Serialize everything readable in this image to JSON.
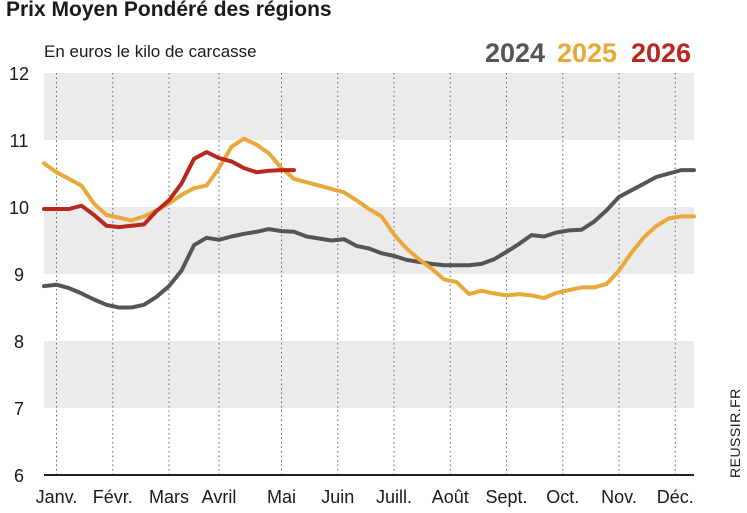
{
  "title": "Prix Moyen Pondéré des régions",
  "subtitle": "En euros le kilo de carcasse",
  "credit": "REUSSIR.FR",
  "colors": {
    "2024": "#555555",
    "2025": "#e8a93a",
    "2026": "#b8281f",
    "band": "#ebebeb",
    "baseline": "#222222"
  },
  "chart_data": {
    "type": "line",
    "title": "Prix Moyen Pondéré des régions",
    "ylabel": "En euros le kilo de carcasse",
    "xlabel": "",
    "ylim": [
      6,
      12
    ],
    "yticks": [
      6,
      7,
      8,
      9,
      10,
      11,
      12
    ],
    "grid": "alternating horizontal bands",
    "legend_position": "top-right",
    "x_domain": [
      0,
      52
    ],
    "month_labels": [
      "Janv.",
      "Févr.",
      "Mars",
      "Avril",
      "Mai",
      "Juin",
      "Juill.",
      "Août",
      "Sept.",
      "Oct.",
      "Nov.",
      "Déc."
    ],
    "month_positions": [
      1,
      5.5,
      10,
      14,
      19,
      23.5,
      28,
      32.5,
      37,
      41.5,
      46,
      50.5
    ],
    "x_unit": "week",
    "series": [
      {
        "name": "2024",
        "x": [
          0,
          1,
          2,
          3,
          4,
          5,
          6,
          7,
          8,
          9,
          10,
          11,
          12,
          13,
          14,
          15,
          16,
          17,
          18,
          19,
          20,
          21,
          22,
          23,
          24,
          25,
          26,
          27,
          28,
          29,
          30,
          31,
          32,
          33,
          34,
          35,
          36,
          37,
          38,
          39,
          40,
          41,
          42,
          43,
          44,
          45,
          46,
          47,
          48,
          49,
          50,
          51,
          52
        ],
        "values": [
          8.82,
          8.84,
          8.79,
          8.71,
          8.62,
          8.54,
          8.5,
          8.5,
          8.54,
          8.66,
          8.82,
          9.05,
          9.43,
          9.54,
          9.51,
          9.56,
          9.6,
          9.63,
          9.67,
          9.64,
          9.63,
          9.56,
          9.53,
          9.5,
          9.52,
          9.42,
          9.38,
          9.31,
          9.27,
          9.21,
          9.18,
          9.15,
          9.13,
          9.13,
          9.13,
          9.15,
          9.22,
          9.33,
          9.45,
          9.58,
          9.56,
          9.62,
          9.65,
          9.66,
          9.78,
          9.95,
          10.15,
          10.25,
          10.35,
          10.45,
          10.5,
          10.55,
          10.55
        ]
      },
      {
        "name": "2025",
        "x": [
          0,
          1,
          2,
          3,
          4,
          5,
          6,
          7,
          8,
          9,
          10,
          11,
          12,
          13,
          14,
          15,
          16,
          17,
          18,
          19,
          20,
          21,
          22,
          23,
          24,
          25,
          26,
          27,
          28,
          29,
          30,
          31,
          32,
          33,
          34,
          35,
          36,
          37,
          38,
          39,
          40,
          41,
          42,
          43,
          44,
          45,
          46,
          47,
          48,
          49,
          50,
          51,
          52
        ],
        "values": [
          10.65,
          10.52,
          10.42,
          10.32,
          10.05,
          9.88,
          9.84,
          9.8,
          9.86,
          9.95,
          10.05,
          10.18,
          10.28,
          10.32,
          10.58,
          10.9,
          11.02,
          10.93,
          10.8,
          10.58,
          10.42,
          10.37,
          10.32,
          10.27,
          10.22,
          10.1,
          9.97,
          9.86,
          9.59,
          9.38,
          9.22,
          9.08,
          8.92,
          8.88,
          8.7,
          8.75,
          8.71,
          8.68,
          8.7,
          8.68,
          8.64,
          8.72,
          8.76,
          8.8,
          8.8,
          8.85,
          9.05,
          9.32,
          9.55,
          9.72,
          9.83,
          9.86,
          9.86
        ]
      },
      {
        "name": "2026",
        "x": [
          0,
          1,
          2,
          3,
          4,
          5,
          6,
          7,
          8,
          9,
          10,
          11,
          12,
          13,
          14,
          15,
          16,
          17,
          18,
          19,
          20
        ],
        "values": [
          9.97,
          9.97,
          9.97,
          10.02,
          9.88,
          9.72,
          9.7,
          9.72,
          9.74,
          9.94,
          10.1,
          10.35,
          10.72,
          10.82,
          10.73,
          10.68,
          10.58,
          10.52,
          10.54,
          10.55,
          10.55
        ]
      }
    ]
  }
}
